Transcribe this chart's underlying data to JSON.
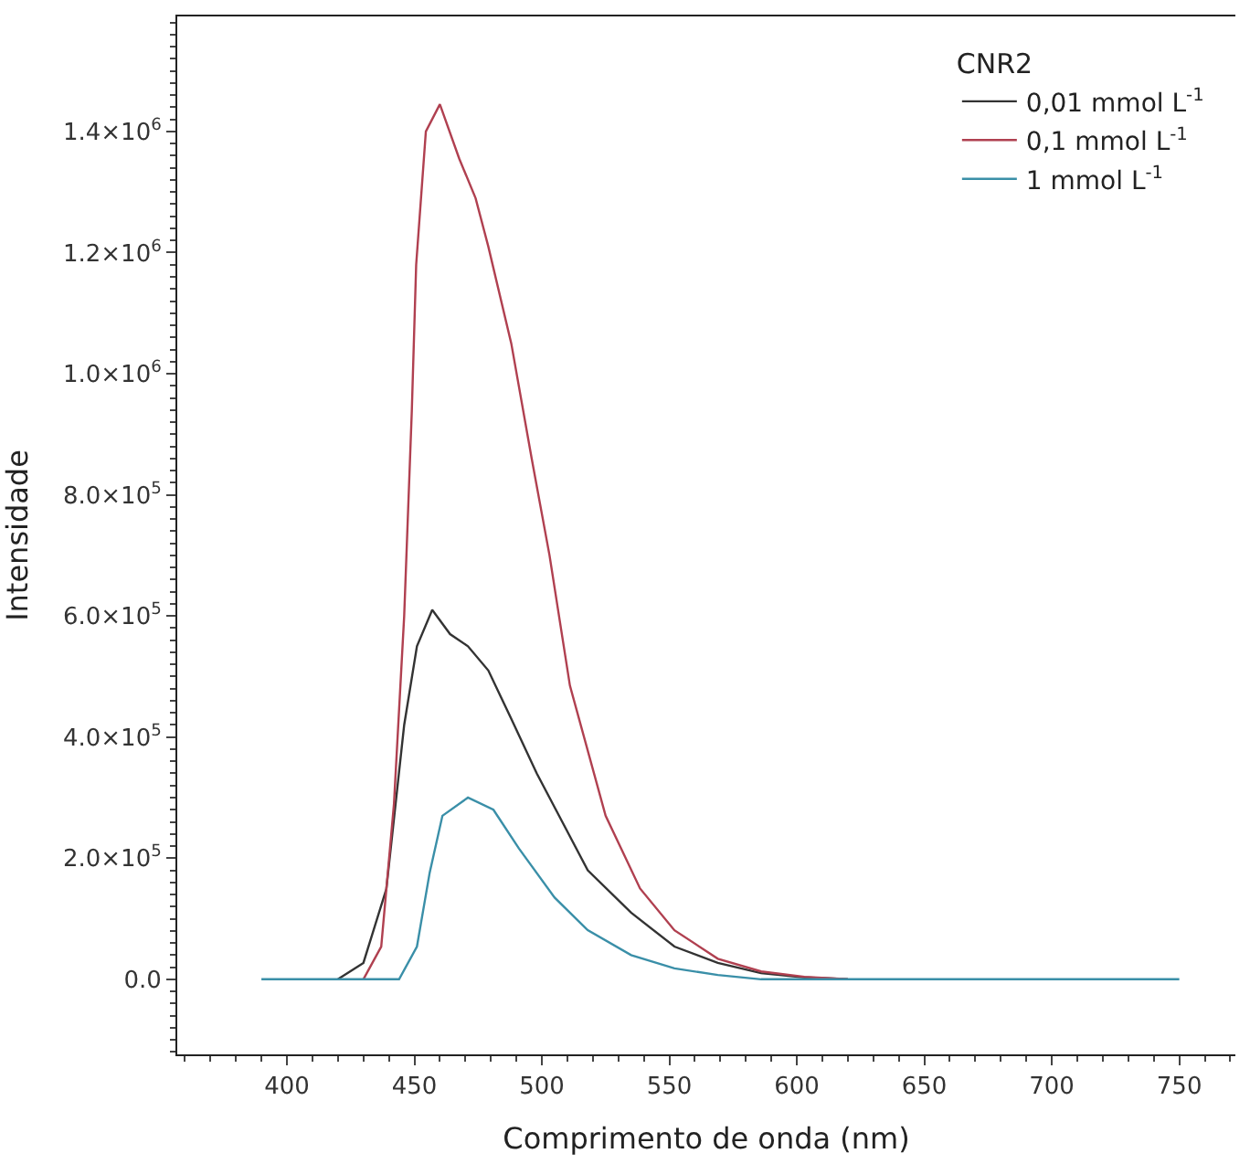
{
  "chart_data": {
    "type": "line",
    "xlabel": "Comprimento de onda (nm)",
    "ylabel": "Intensidade",
    "legend_title": "CNR2",
    "legend": "top right",
    "marker": "none",
    "line_style": "solid",
    "xlim": [
      357,
      772
    ],
    "xticks": [
      400,
      450,
      500,
      550,
      600,
      650,
      700,
      750
    ],
    "ylim": [
      -124000,
      1590000
    ],
    "yticks": [
      {
        "value": 0,
        "label": "0.0"
      },
      {
        "value": 200000,
        "label": "2.0×10$^{5}$"
      },
      {
        "value": 400000,
        "label": "4.0×10$^{5}$"
      },
      {
        "value": 600000,
        "label": "6.0×10$^{5}$"
      },
      {
        "value": 800000,
        "label": "8.0×10$^{5}$"
      },
      {
        "value": 1000000,
        "label": "1.0×10$^{6}$"
      },
      {
        "value": 1200000,
        "label": "1.2×10$^{6}$"
      },
      {
        "value": 1400000,
        "label": "1.4×10$^{6}$"
      }
    ],
    "series": [
      {
        "name": "0,01 mmol L$^{-1}$",
        "color": "#333333",
        "x": [
          420,
          430,
          439,
          446,
          451,
          457,
          464,
          471,
          479,
          488,
          498,
          508,
          518,
          535,
          552,
          569,
          586,
          603,
          620
        ],
        "values": [
          0,
          27000,
          149000,
          420000,
          550000,
          610000,
          570000,
          550000,
          510000,
          430000,
          340000,
          260000,
          180000,
          110000,
          54000,
          27000,
          10000,
          3000,
          0
        ]
      },
      {
        "name": "0,1 mmol L$^{-1}$",
        "color": "#b04050",
        "x": [
          430,
          437,
          442,
          446,
          449,
          450.7,
          454.5,
          460,
          467.6,
          474,
          479,
          488,
          496,
          503,
          511,
          525,
          538.5,
          552,
          569,
          586,
          603,
          620
        ],
        "values": [
          0,
          54000,
          290000,
          600000,
          940000,
          1180000,
          1400000,
          1445000,
          1355000,
          1290000,
          1210000,
          1050000,
          860000,
          700000,
          485000,
          270000,
          150000,
          81000,
          34000,
          13000,
          4000,
          0
        ]
      },
      {
        "name": "1 mmol L$^{-1}$",
        "color": "#3a8fa8",
        "x": [
          390,
          444,
          451,
          456,
          461,
          471,
          481,
          491,
          505,
          518,
          535,
          552,
          569,
          586,
          750
        ],
        "values": [
          0,
          0,
          54000,
          176000,
          270000,
          300000,
          280000,
          216000,
          135000,
          81000,
          40000,
          18000,
          7000,
          0,
          0
        ]
      }
    ]
  }
}
